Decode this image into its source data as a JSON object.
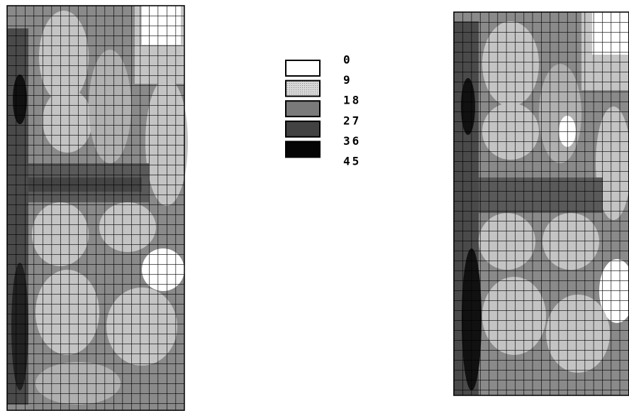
{
  "legend": {
    "levels": [
      0,
      9,
      18,
      27,
      36,
      45
    ],
    "colors": [
      "#ffffff",
      "#c4c4c4",
      "#7a7a7a",
      "#424242",
      "#050505"
    ]
  }
}
